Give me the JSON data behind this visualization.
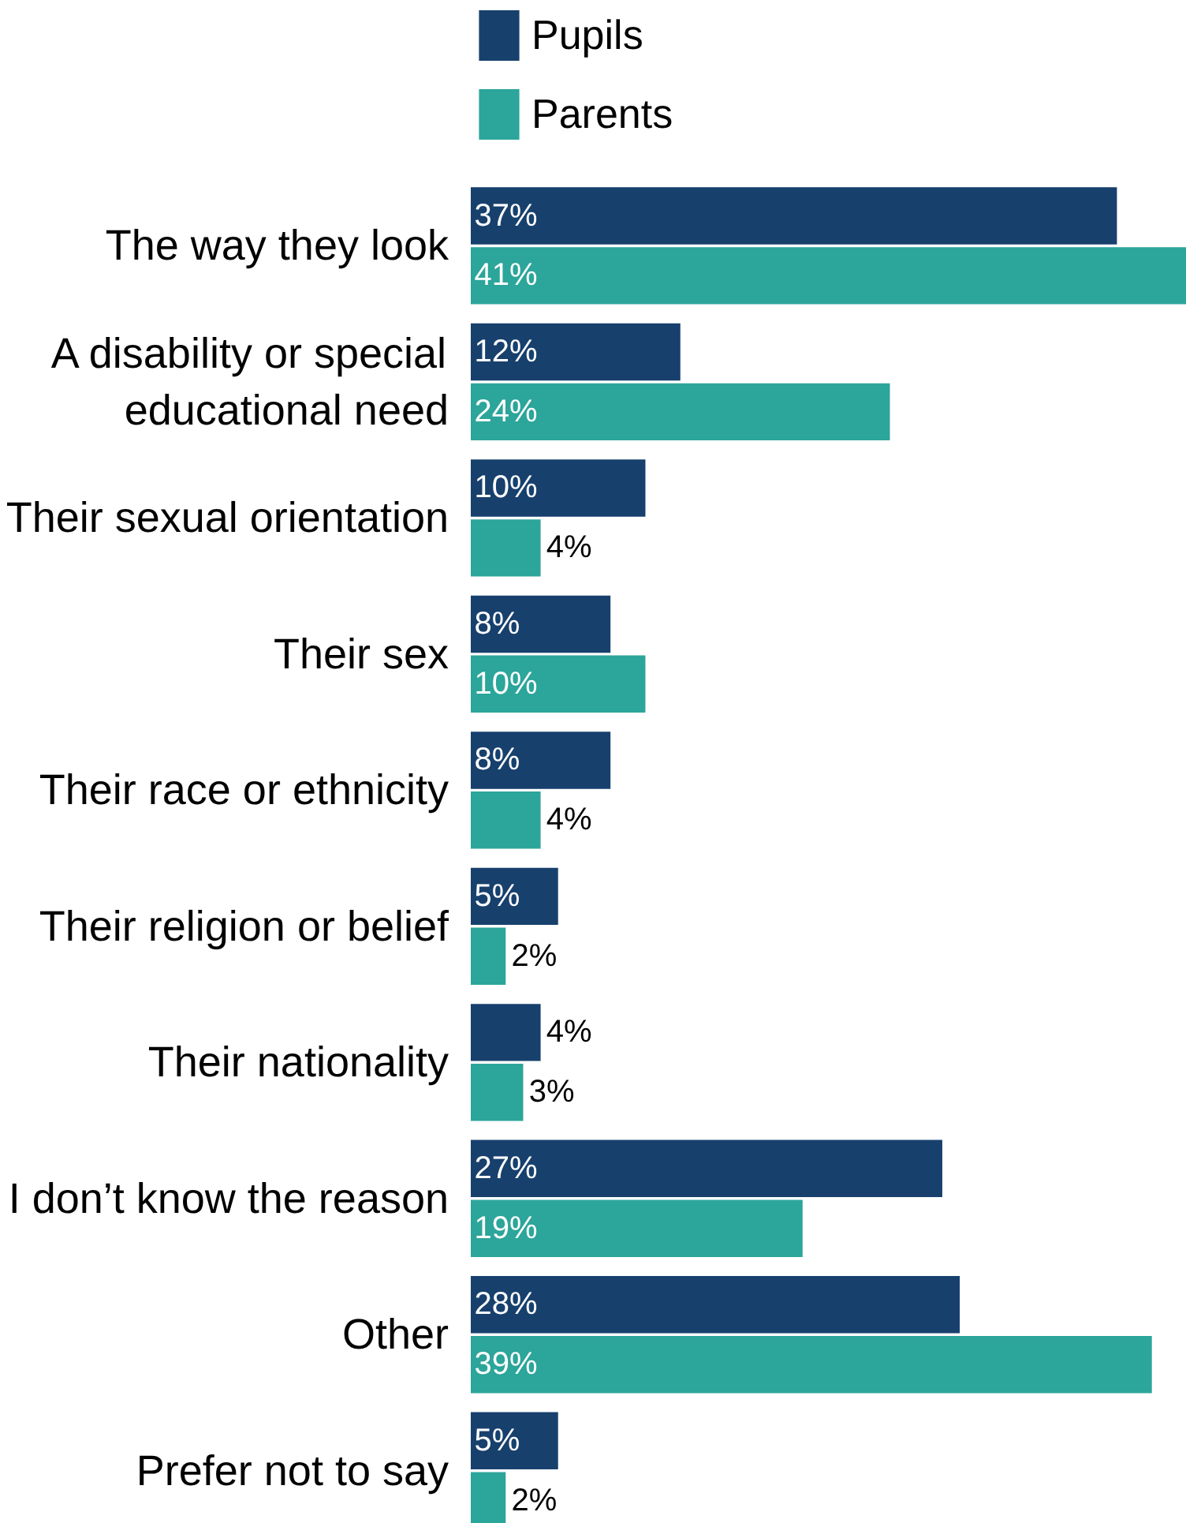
{
  "chart_data": {
    "type": "bar",
    "orientation": "horizontal",
    "categories": [
      "The way they look",
      "A disability or special educational need",
      "Their sexual orientation",
      "Their sex",
      "Their race or ethnicity",
      "Their religion or belief",
      "Their nationality",
      "I don’t know the reason",
      "Other",
      "Prefer not to say"
    ],
    "series": [
      {
        "name": "Pupils",
        "color": "#17406d",
        "values": [
          37,
          12,
          10,
          8,
          8,
          5,
          4,
          27,
          28,
          5
        ],
        "value_labels": [
          "37%",
          "12%",
          "10%",
          "8%",
          "8%",
          "5%",
          "4%",
          "27%",
          "28%",
          "5%"
        ]
      },
      {
        "name": "Parents",
        "color": "#2ca59a",
        "values": [
          41,
          24,
          4,
          10,
          4,
          2,
          3,
          19,
          39,
          2
        ],
        "value_labels": [
          "41%",
          "24%",
          "4%",
          "10%",
          "4%",
          "2%",
          "3%",
          "19%",
          "39%",
          "2%"
        ]
      }
    ],
    "legend": "top",
    "grid": false
  }
}
